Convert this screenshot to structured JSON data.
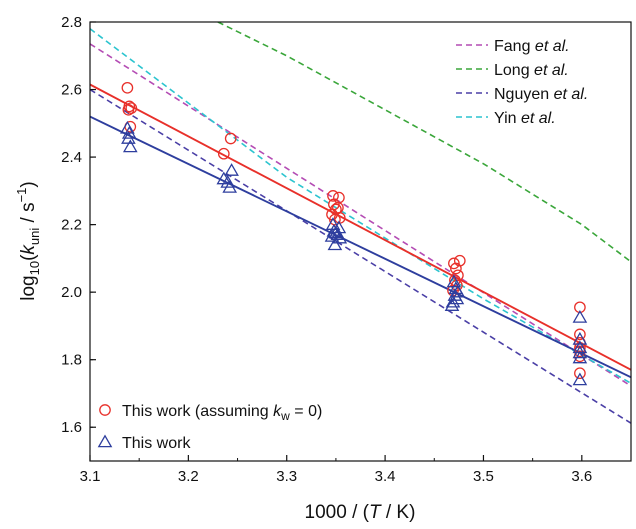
{
  "chart_data": {
    "type": "scatter",
    "xlabel": "1000 / (T / K)",
    "ylabel": "log10(kuni / s−1)",
    "xlim": [
      3.1,
      3.65
    ],
    "ylim": [
      1.5,
      2.8
    ],
    "xticks": [
      "3.1",
      "3.2",
      "3.3",
      "3.4",
      "3.5",
      "3.6"
    ],
    "yticks": [
      "1.6",
      "1.8",
      "2.0",
      "2.2",
      "2.4",
      "2.6",
      "2.8"
    ],
    "grid": false,
    "legend_top_right": [
      {
        "name": "Fang et al.",
        "prefix": "Fang ",
        "italic": "et al.",
        "color": "#b44cb4",
        "style": "dashed"
      },
      {
        "name": "Long et al.",
        "prefix": "Long ",
        "italic": "et al.",
        "color": "#3aa63a",
        "style": "dashed"
      },
      {
        "name": "Nguyen et al.",
        "prefix": "Nguyen ",
        "italic": "et al.",
        "color": "#4a3fa6",
        "style": "dashed"
      },
      {
        "name": "Yin et al.",
        "prefix": "Yin ",
        "italic": "et al.",
        "color": "#2cc4cf",
        "style": "dashed"
      }
    ],
    "legend_bottom_left": [
      {
        "name": "This work (assuming kw = 0)",
        "marker": "circle",
        "color": "#e8302a"
      },
      {
        "name": "This work",
        "marker": "triangle",
        "color": "#2e3e9e"
      }
    ],
    "lines": [
      {
        "name": "Fang et al.",
        "color": "#b44cb4",
        "dash": true,
        "x": [
          3.1,
          3.65
        ],
        "y": [
          2.735,
          1.722
        ]
      },
      {
        "name": "Long et al.",
        "color": "#3aa63a",
        "dash": true,
        "x": [
          3.23,
          3.3,
          3.4,
          3.5,
          3.6,
          3.65
        ],
        "y": [
          2.8,
          2.7,
          2.54,
          2.38,
          2.2,
          2.09
        ]
      },
      {
        "name": "Nguyen et al.",
        "color": "#4a3fa6",
        "dash": true,
        "x": [
          3.1,
          3.65
        ],
        "y": [
          2.6,
          1.612
        ]
      },
      {
        "name": "Yin et al.",
        "color": "#2cc4cf",
        "dash": true,
        "x": [
          3.1,
          3.3,
          3.5,
          3.65
        ],
        "y": [
          2.78,
          2.34,
          1.98,
          1.73
        ]
      },
      {
        "name": "This work (assuming kw = 0) fit",
        "color": "#e8302a",
        "dash": false,
        "x": [
          3.1,
          3.65
        ],
        "y": [
          2.615,
          1.77
        ]
      },
      {
        "name": "This work fit",
        "color": "#2e3e9e",
        "dash": false,
        "x": [
          3.1,
          3.65
        ],
        "y": [
          2.52,
          1.748
        ]
      }
    ],
    "series": [
      {
        "name": "This work (assuming kw = 0)",
        "marker": "circle",
        "color": "#e8302a",
        "points": [
          [
            3.138,
            2.605
          ],
          [
            3.14,
            2.55
          ],
          [
            3.142,
            2.545
          ],
          [
            3.139,
            2.54
          ],
          [
            3.141,
            2.49
          ],
          [
            3.236,
            2.41
          ],
          [
            3.243,
            2.455
          ],
          [
            3.347,
            2.285
          ],
          [
            3.353,
            2.28
          ],
          [
            3.348,
            2.26
          ],
          [
            3.352,
            2.25
          ],
          [
            3.35,
            2.245
          ],
          [
            3.346,
            2.23
          ],
          [
            3.354,
            2.22
          ],
          [
            3.349,
            2.215
          ],
          [
            3.47,
            2.085
          ],
          [
            3.476,
            2.093
          ],
          [
            3.472,
            2.07
          ],
          [
            3.474,
            2.05
          ],
          [
            3.471,
            2.035
          ],
          [
            3.473,
            2.02
          ],
          [
            3.469,
            2.005
          ],
          [
            3.598,
            1.955
          ],
          [
            3.598,
            1.875
          ],
          [
            3.598,
            1.85
          ],
          [
            3.598,
            1.835
          ],
          [
            3.598,
            1.825
          ],
          [
            3.598,
            1.81
          ],
          [
            3.598,
            1.76
          ]
        ]
      },
      {
        "name": "This work",
        "marker": "triangle",
        "color": "#2e3e9e",
        "points": [
          [
            3.138,
            2.485
          ],
          [
            3.14,
            2.47
          ],
          [
            3.139,
            2.455
          ],
          [
            3.141,
            2.43
          ],
          [
            3.236,
            2.335
          ],
          [
            3.24,
            2.325
          ],
          [
            3.244,
            2.36
          ],
          [
            3.242,
            2.31
          ],
          [
            3.347,
            2.2
          ],
          [
            3.353,
            2.19
          ],
          [
            3.348,
            2.18
          ],
          [
            3.35,
            2.175
          ],
          [
            3.352,
            2.17
          ],
          [
            3.346,
            2.165
          ],
          [
            3.354,
            2.16
          ],
          [
            3.349,
            2.14
          ],
          [
            3.47,
            2.03
          ],
          [
            3.472,
            2.01
          ],
          [
            3.474,
            2.0
          ],
          [
            3.471,
            1.99
          ],
          [
            3.473,
            1.98
          ],
          [
            3.469,
            1.97
          ],
          [
            3.468,
            1.96
          ],
          [
            3.598,
            1.925
          ],
          [
            3.598,
            1.86
          ],
          [
            3.598,
            1.835
          ],
          [
            3.598,
            1.82
          ],
          [
            3.598,
            1.805
          ],
          [
            3.598,
            1.74
          ]
        ]
      }
    ]
  }
}
